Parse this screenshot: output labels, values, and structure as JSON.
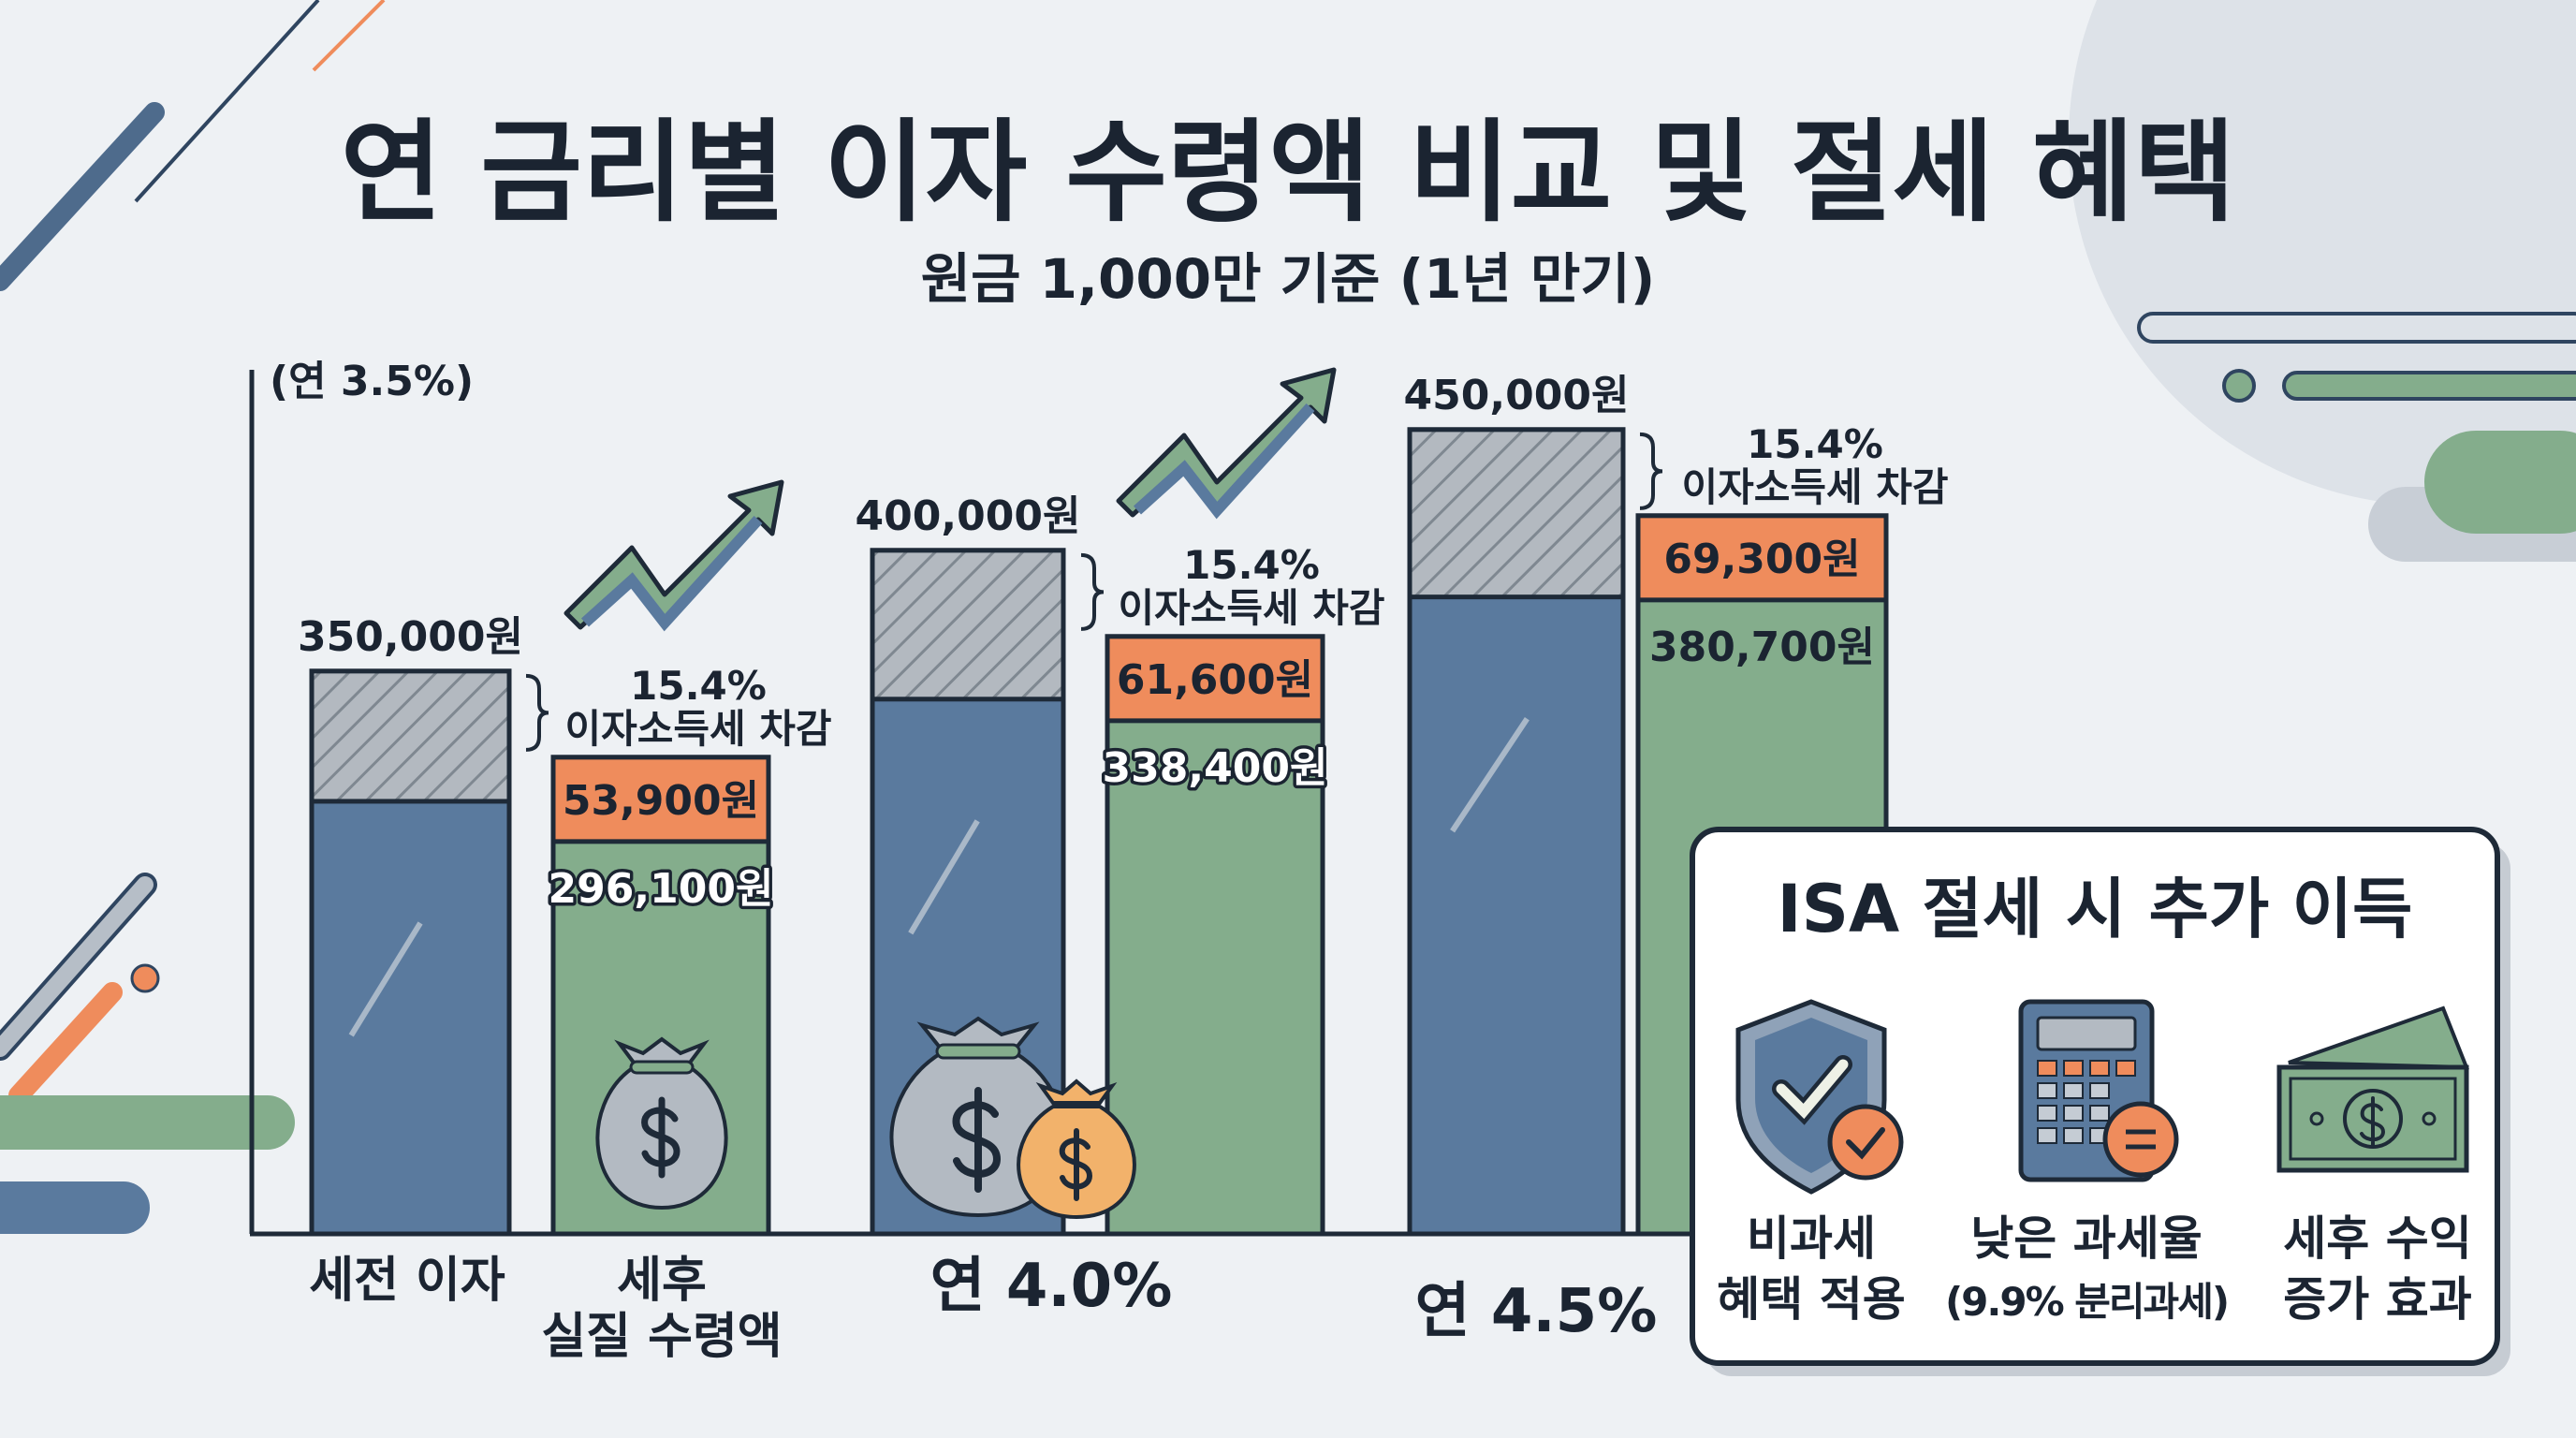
{
  "header": {
    "title": "연 금리별 이자 수령액 비교 및 절세 혜택",
    "subtitle": "원금 1,000만 기준 (1년 만기)"
  },
  "colors": {
    "background": "#eef1f4",
    "pretax_bar": "#5a7a9e",
    "tax_hatch": "#a9b0b8",
    "tax_deduction": "#ef8c5c",
    "net_bar": "#84ad8c",
    "outline": "#1e2a38"
  },
  "chart_data": {
    "type": "bar",
    "title": "연 금리별 이자 수령액 비교 및 절세 혜택",
    "subtitle": "원금 1,000만 기준 (1년 만기)",
    "stacked": true,
    "grid": false,
    "first_group_label": "(연 3.5%)",
    "bar_labels": {
      "pretax": "세전 이자",
      "net_line1": "세후",
      "net_line2": "실질 수령액"
    },
    "tax_note": {
      "rate": "15.4%",
      "text": "이자소득세 차감"
    },
    "groups": [
      {
        "rate": "연 3.5%",
        "pretax": 350000,
        "tax": 53900,
        "net": 296100,
        "pretax_label": "350,000원",
        "tax_label": "53,900원",
        "net_label": "296,100원"
      },
      {
        "rate": "연 4.0%",
        "pretax": 400000,
        "tax": 61600,
        "net": 338400,
        "pretax_label": "400,000원",
        "tax_label": "61,600원",
        "net_label": "338,400원"
      },
      {
        "rate": "연 4.5%",
        "pretax": 450000,
        "tax": 69300,
        "net": 380700,
        "pretax_label": "450,000원",
        "tax_label": "69,300원",
        "net_label": "380,700원"
      }
    ]
  },
  "isa_box": {
    "title": "ISA 절세 시 추가 이득",
    "items": [
      {
        "icon": "shield-check-icon",
        "line1": "비과세",
        "line2": "혜택 적용"
      },
      {
        "icon": "calculator-icon",
        "line1": "낮은 과세율",
        "line2": "(9.9% 분리과세)"
      },
      {
        "icon": "cash-icon",
        "line1": "세후 수익",
        "line2": "증가 효과"
      }
    ]
  }
}
